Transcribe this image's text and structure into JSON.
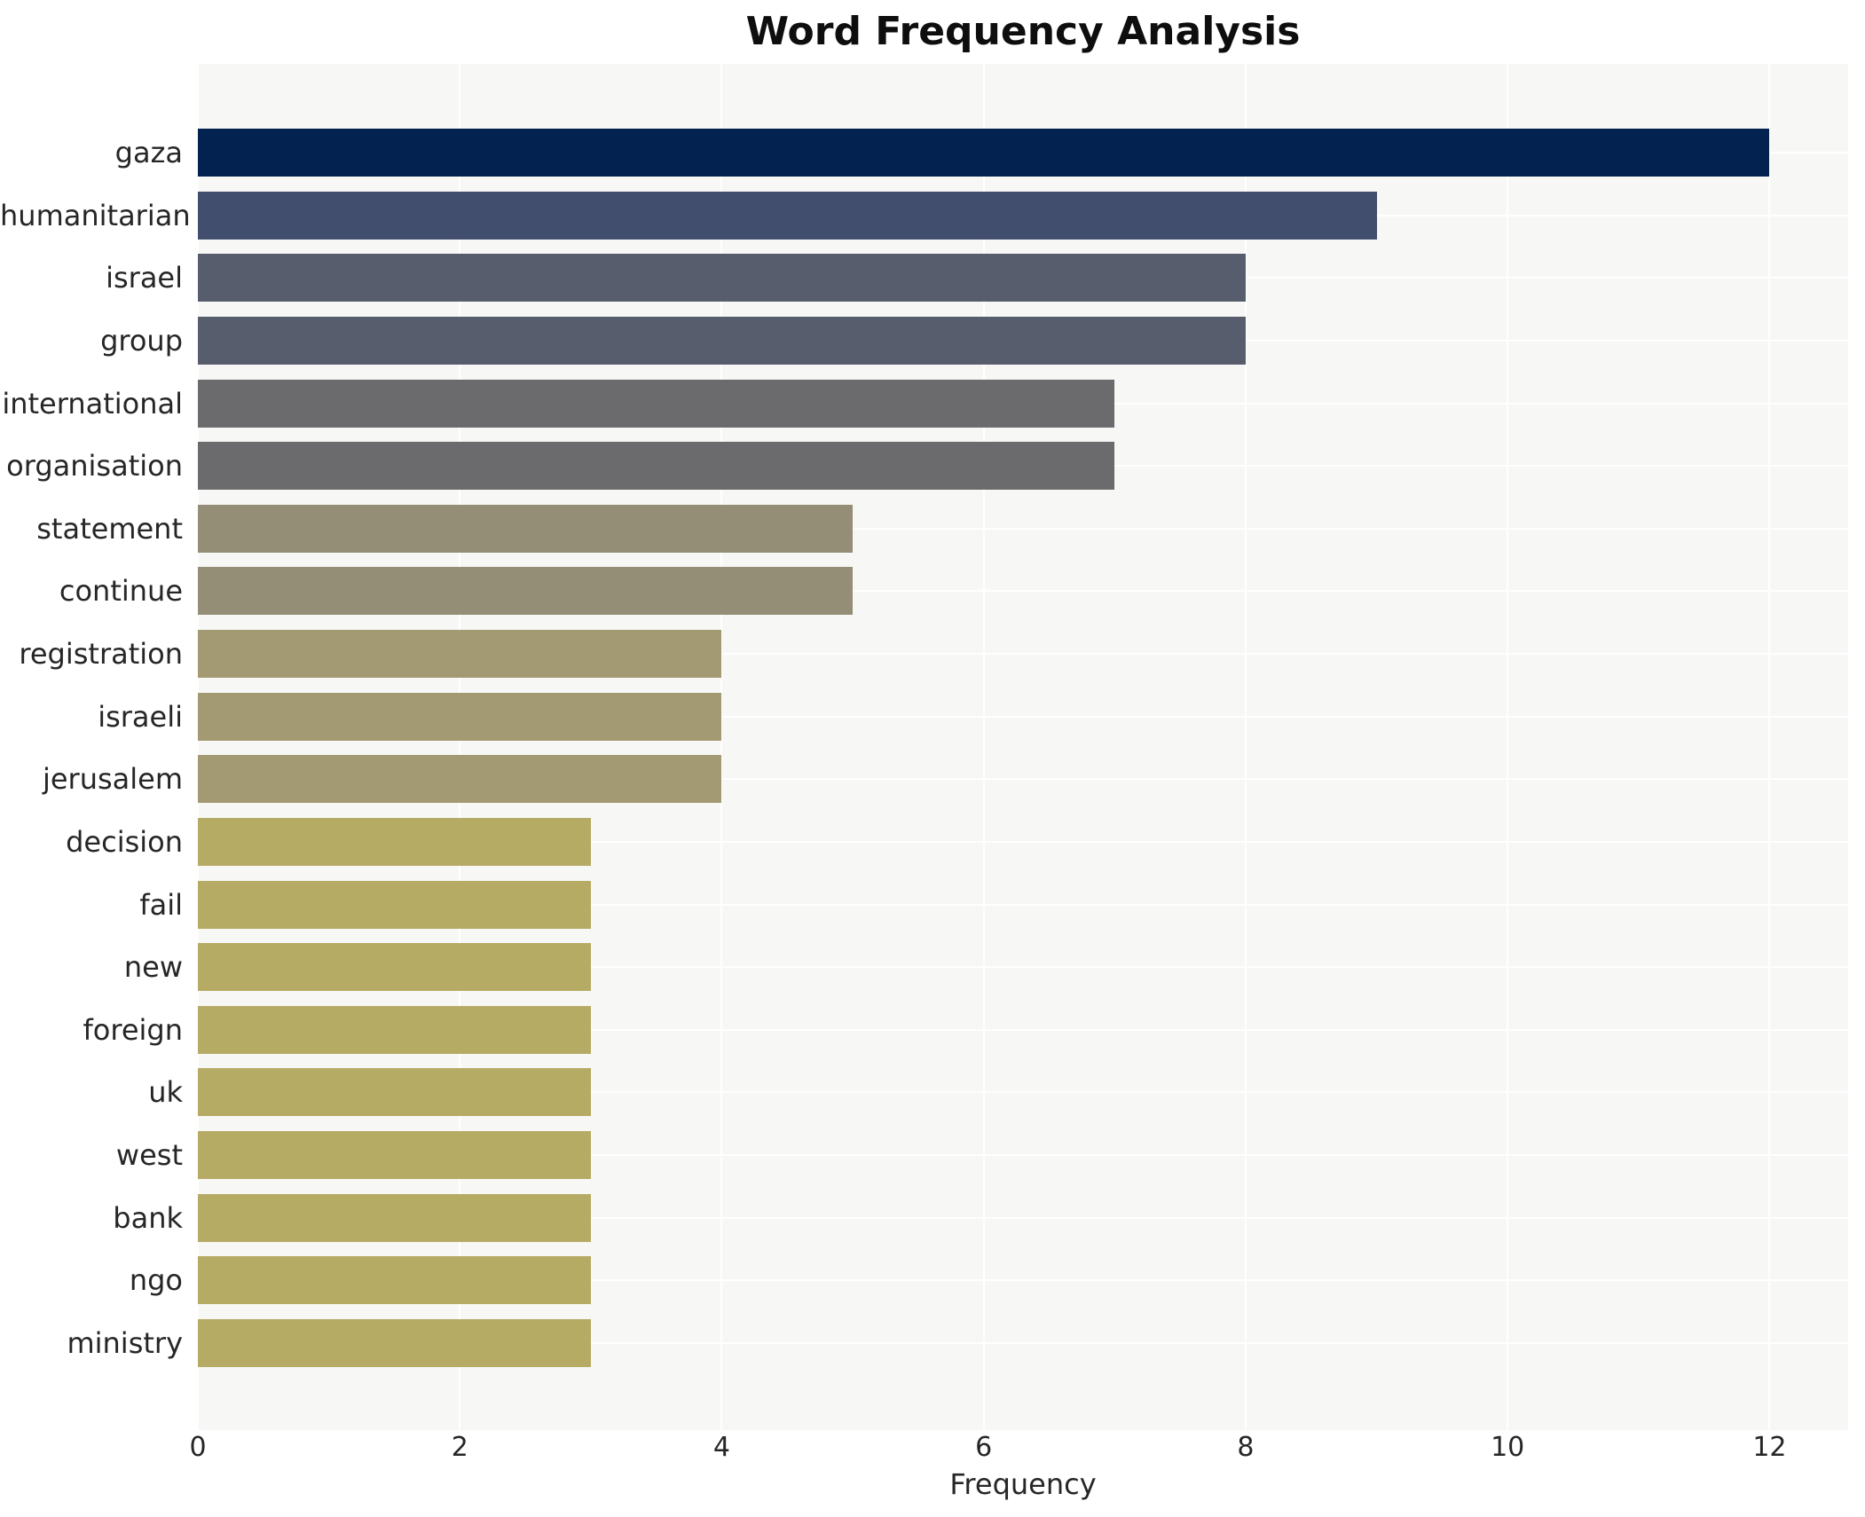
{
  "page_title": "Word Frequency Analysis",
  "chart_data": {
    "type": "bar",
    "orientation": "horizontal",
    "title": "Word Frequency Analysis",
    "xlabel": "Frequency",
    "ylabel": "",
    "categories": [
      "gaza",
      "humanitarian",
      "israel",
      "group",
      "international",
      "organisation",
      "statement",
      "continue",
      "registration",
      "israeli",
      "jerusalem",
      "decision",
      "fail",
      "new",
      "foreign",
      "uk",
      "west",
      "bank",
      "ngo",
      "ministry"
    ],
    "values": [
      12,
      9,
      8,
      8,
      7,
      7,
      5,
      5,
      4,
      4,
      4,
      3,
      3,
      3,
      3,
      3,
      3,
      3,
      3,
      3
    ],
    "bar_colors": [
      "#032250",
      "#424e6e",
      "#575d6c",
      "#575d6c",
      "#6b6b6e",
      "#6b6b6e",
      "#938e75",
      "#938e75",
      "#a39a73",
      "#a39a73",
      "#a39a73",
      "#b6ab64",
      "#b6ab64",
      "#b6ab64",
      "#b6ab64",
      "#b6ab64",
      "#b6ab64",
      "#b6ab64",
      "#b6ab64",
      "#b6ab64"
    ],
    "xticks": [
      0,
      2,
      4,
      6,
      8,
      10,
      12
    ],
    "xlim": [
      0,
      12.6
    ],
    "legend": "none",
    "grid": "white gridlines at x ticks and category centers",
    "panel_bg": "#f7f7f5",
    "gridline_color": "#ffffff",
    "tick_label_color": "#262626",
    "title_color": "#0e0e0e"
  }
}
